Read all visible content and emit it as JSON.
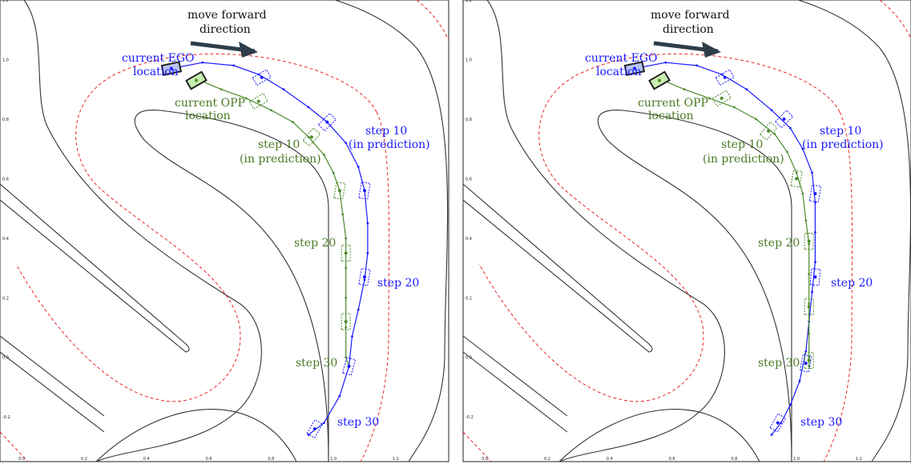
{
  "chart_data": [
    {
      "type": "line",
      "panel": "left",
      "xticks": [
        "0.0",
        "0.2",
        "0.4",
        "0.6",
        "0.8",
        "1.0",
        "1.2"
      ],
      "yticks": [
        "1.2",
        "1.0",
        "0.8",
        "0.6",
        "0.4",
        "0.2",
        "0.0",
        "-0.2"
      ],
      "xlim": [
        -0.07,
        1.37
      ],
      "ylim": [
        -0.35,
        1.2
      ],
      "grid": false,
      "colors": {
        "ego": "#1a1aff",
        "opp": "#4a8a2a",
        "track": "#333333",
        "boundary": "#e8262a"
      },
      "series": [
        {
          "role": "ego",
          "points": [
            [
              0.48,
              0.97
            ],
            [
              0.58,
              0.99
            ],
            [
              0.68,
              0.98
            ],
            [
              0.76,
              0.95
            ],
            [
              0.84,
              0.9
            ],
            [
              0.92,
              0.84
            ],
            [
              0.98,
              0.79
            ],
            [
              1.04,
              0.72
            ],
            [
              1.08,
              0.64
            ],
            [
              1.1,
              0.56
            ],
            [
              1.11,
              0.45
            ],
            [
              1.11,
              0.35
            ],
            [
              1.1,
              0.26
            ],
            [
              1.08,
              0.16
            ],
            [
              1.06,
              0.07
            ],
            [
              1.05,
              -0.03
            ],
            [
              1.02,
              -0.13
            ],
            [
              0.97,
              -0.22
            ],
            [
              0.92,
              -0.26
            ]
          ]
        },
        {
          "role": "opp",
          "points": [
            [
              0.55,
              0.94
            ],
            [
              0.64,
              0.9
            ],
            [
              0.72,
              0.87
            ],
            [
              0.8,
              0.83
            ],
            [
              0.87,
              0.79
            ],
            [
              0.92,
              0.74
            ],
            [
              0.97,
              0.68
            ],
            [
              1.0,
              0.62
            ],
            [
              1.02,
              0.56
            ],
            [
              1.03,
              0.48
            ],
            [
              1.04,
              0.4
            ],
            [
              1.04,
              0.3
            ],
            [
              1.04,
              0.2
            ],
            [
              1.04,
              0.1
            ],
            [
              1.04,
              0.0
            ],
            [
              1.05,
              -0.03
            ]
          ]
        }
      ],
      "markers": [
        {
          "role": "ego",
          "x": 0.48,
          "y": 0.97,
          "angle": -12,
          "solid": true
        },
        {
          "role": "opp",
          "x": 0.56,
          "y": 0.93,
          "angle": -30,
          "solid": true
        },
        {
          "role": "ego",
          "x": 0.77,
          "y": 0.94,
          "angle": -30,
          "solid": false
        },
        {
          "role": "ego",
          "x": 0.98,
          "y": 0.79,
          "angle": -45,
          "solid": false
        },
        {
          "role": "ego",
          "x": 1.1,
          "y": 0.56,
          "angle": -80,
          "solid": false
        },
        {
          "role": "ego",
          "x": 1.1,
          "y": 0.27,
          "angle": -80,
          "solid": false
        },
        {
          "role": "ego",
          "x": 1.05,
          "y": -0.03,
          "angle": -75,
          "solid": false
        },
        {
          "role": "ego",
          "x": 0.94,
          "y": -0.24,
          "angle": -60,
          "solid": false
        },
        {
          "role": "opp",
          "x": 0.76,
          "y": 0.86,
          "angle": -30,
          "solid": false
        },
        {
          "role": "opp",
          "x": 0.93,
          "y": 0.74,
          "angle": -50,
          "solid": false
        },
        {
          "role": "opp",
          "x": 1.02,
          "y": 0.56,
          "angle": -80,
          "solid": false
        },
        {
          "role": "opp",
          "x": 1.04,
          "y": 0.35,
          "angle": -90,
          "solid": false
        },
        {
          "role": "opp",
          "x": 1.04,
          "y": 0.12,
          "angle": -90,
          "solid": false
        }
      ]
    },
    {
      "type": "line",
      "panel": "right",
      "xticks": [
        "0.0",
        "0.2",
        "0.4",
        "0.6",
        "0.8",
        "1.0",
        "1.2"
      ],
      "yticks": [
        "1.2",
        "1.0",
        "0.8",
        "0.6",
        "0.4",
        "0.2",
        "0.0",
        "-0.2"
      ],
      "xlim": [
        -0.07,
        1.37
      ],
      "ylim": [
        -0.35,
        1.2
      ],
      "grid": false,
      "series": [
        {
          "role": "ego",
          "points": [
            [
              0.48,
              0.97
            ],
            [
              0.58,
              0.99
            ],
            [
              0.68,
              0.98
            ],
            [
              0.76,
              0.95
            ],
            [
              0.84,
              0.9
            ],
            [
              0.92,
              0.83
            ],
            [
              0.98,
              0.77
            ],
            [
              1.02,
              0.7
            ],
            [
              1.05,
              0.62
            ],
            [
              1.06,
              0.52
            ],
            [
              1.06,
              0.42
            ],
            [
              1.06,
              0.32
            ],
            [
              1.05,
              0.22
            ],
            [
              1.04,
              0.12
            ],
            [
              1.03,
              0.02
            ],
            [
              1.01,
              -0.08
            ],
            [
              0.98,
              -0.16
            ],
            [
              0.95,
              -0.22
            ],
            [
              0.92,
              -0.26
            ]
          ]
        },
        {
          "role": "opp",
          "points": [
            [
              0.55,
              0.94
            ],
            [
              0.64,
              0.9
            ],
            [
              0.72,
              0.87
            ],
            [
              0.8,
              0.84
            ],
            [
              0.87,
              0.8
            ],
            [
              0.93,
              0.75
            ],
            [
              0.97,
              0.69
            ],
            [
              1.0,
              0.62
            ],
            [
              1.02,
              0.55
            ],
            [
              1.03,
              0.46
            ],
            [
              1.04,
              0.38
            ],
            [
              1.04,
              0.28
            ],
            [
              1.04,
              0.18
            ],
            [
              1.04,
              0.08
            ],
            [
              1.04,
              0.0
            ],
            [
              1.04,
              -0.03
            ]
          ]
        }
      ],
      "markers": [
        {
          "role": "ego",
          "x": 0.48,
          "y": 0.97,
          "angle": -12,
          "solid": true
        },
        {
          "role": "opp",
          "x": 0.56,
          "y": 0.93,
          "angle": -30,
          "solid": true
        },
        {
          "role": "ego",
          "x": 0.77,
          "y": 0.94,
          "angle": -30,
          "solid": false
        },
        {
          "role": "ego",
          "x": 0.96,
          "y": 0.8,
          "angle": -45,
          "solid": false
        },
        {
          "role": "ego",
          "x": 1.06,
          "y": 0.55,
          "angle": -80,
          "solid": false
        },
        {
          "role": "ego",
          "x": 1.06,
          "y": 0.27,
          "angle": -85,
          "solid": false
        },
        {
          "role": "ego",
          "x": 1.03,
          "y": -0.02,
          "angle": -80,
          "solid": false
        },
        {
          "role": "ego",
          "x": 0.94,
          "y": -0.22,
          "angle": -60,
          "solid": false
        },
        {
          "role": "opp",
          "x": 0.76,
          "y": 0.87,
          "angle": -30,
          "solid": false
        },
        {
          "role": "opp",
          "x": 0.91,
          "y": 0.76,
          "angle": -50,
          "solid": false
        },
        {
          "role": "opp",
          "x": 1.0,
          "y": 0.6,
          "angle": -80,
          "solid": false
        },
        {
          "role": "opp",
          "x": 1.04,
          "y": 0.39,
          "angle": -90,
          "solid": false
        },
        {
          "role": "opp",
          "x": 1.04,
          "y": 0.17,
          "angle": -90,
          "solid": false
        },
        {
          "role": "opp",
          "x": 1.04,
          "y": -0.01,
          "angle": -90,
          "solid": false
        }
      ]
    }
  ],
  "annotations": {
    "move_forward_1": "move forward",
    "move_forward_2": "direction",
    "current_ego_1": "current EGO",
    "current_ego_2": "location",
    "current_opp_1": "current OPP",
    "current_opp_2": "location",
    "step10": "step 10",
    "in_prediction": "(in prediction)",
    "step20": "step 20",
    "step30": "step 30"
  }
}
